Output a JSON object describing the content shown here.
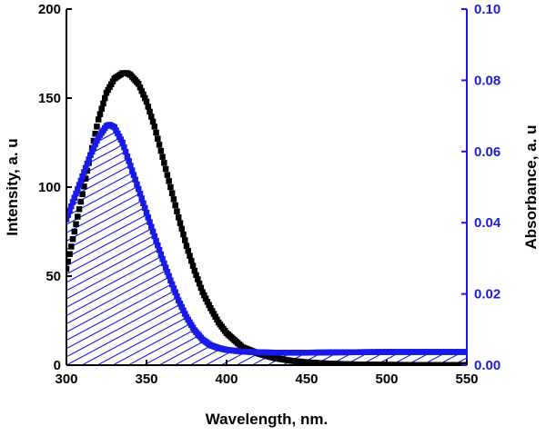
{
  "chart_data": {
    "type": "scatter",
    "title": "",
    "xlabel": "Wavelength, nm.",
    "ylabel_left": "Intensity, a. u",
    "ylabel_right": "Absorbance, a. u",
    "xlim": [
      300,
      550
    ],
    "ylim_left": [
      0,
      200
    ],
    "ylim_right": [
      0,
      0.1
    ],
    "x_ticks": [
      "300",
      "350",
      "400",
      "450",
      "500",
      "550"
    ],
    "y_ticks_left": [
      "0",
      "50",
      "100",
      "150",
      "200"
    ],
    "y_ticks_right": [
      "0.00",
      "0.02",
      "0.04",
      "0.06",
      "0.08",
      "0.10"
    ],
    "grid": false,
    "colors": {
      "emission": "#000000",
      "absorbance": "#1a1ae6"
    },
    "series": [
      {
        "name": "Intensity",
        "axis": "left",
        "color": "#000000",
        "marker": "square",
        "peak_x": 338,
        "peak_y": 164,
        "x": [
          300,
          305,
          310,
          315,
          320,
          325,
          330,
          335,
          338,
          340,
          345,
          350,
          355,
          360,
          365,
          370,
          375,
          380,
          385,
          390,
          395,
          400,
          410,
          420,
          430,
          440,
          450,
          460,
          480,
          500,
          520,
          540,
          550
        ],
        "values": [
          54,
          75,
          96,
          118,
          138,
          153,
          161,
          164,
          164,
          163,
          158,
          148,
          134,
          117,
          100,
          83,
          67,
          53,
          41,
          32,
          24,
          18,
          10,
          6.5,
          4,
          2.5,
          1.6,
          1,
          0.4,
          0.2,
          0.1,
          0.1,
          0.1
        ]
      },
      {
        "name": "Absorbance",
        "axis": "right",
        "color": "#1a1ae6",
        "marker": "square",
        "filled_hatch": true,
        "peak_x": 327,
        "peak_y": 0.0675,
        "x": [
          300,
          305,
          310,
          315,
          320,
          325,
          327,
          330,
          335,
          340,
          345,
          350,
          355,
          360,
          365,
          370,
          375,
          380,
          385,
          390,
          395,
          400,
          410,
          420,
          430,
          440,
          450,
          470,
          500,
          530,
          550
        ],
        "values": [
          0.041,
          0.047,
          0.053,
          0.059,
          0.064,
          0.0672,
          0.0675,
          0.0668,
          0.0625,
          0.056,
          0.0495,
          0.0428,
          0.0362,
          0.0298,
          0.0238,
          0.0182,
          0.0135,
          0.0098,
          0.0072,
          0.0056,
          0.0048,
          0.0043,
          0.0038,
          0.0036,
          0.0035,
          0.0035,
          0.0035,
          0.0036,
          0.0037,
          0.0037,
          0.0037
        ]
      }
    ]
  }
}
